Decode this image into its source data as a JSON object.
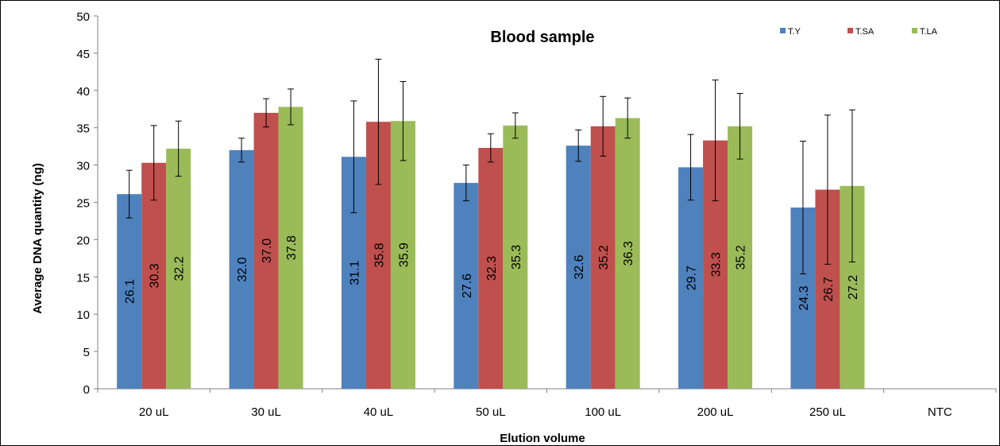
{
  "chart_data": {
    "type": "bar",
    "title": "Blood sample",
    "xlabel": "Elution volume",
    "ylabel": "Average DNA quantity (ng)",
    "ylim": [
      0,
      50
    ],
    "yticks": [
      0,
      5,
      10,
      15,
      20,
      25,
      30,
      35,
      40,
      45,
      50
    ],
    "categories": [
      "20 uL",
      "30 uL",
      "40 uL",
      "50 uL",
      "100 uL",
      "200 uL",
      "250 uL",
      "NTC"
    ],
    "series": [
      {
        "name": "T.Y",
        "color": "#4F81BD",
        "values": [
          26.1,
          32.0,
          31.1,
          27.6,
          32.6,
          29.7,
          24.3,
          null
        ],
        "labels": [
          "26.1",
          "32.0",
          "31.1",
          "27.6",
          "32.6",
          "29.7",
          "24.3",
          ""
        ],
        "errors": [
          3.2,
          1.6,
          7.5,
          2.4,
          2.1,
          4.4,
          8.9,
          null
        ]
      },
      {
        "name": "T.SA",
        "color": "#C0504D",
        "values": [
          30.3,
          37.0,
          35.8,
          32.3,
          35.2,
          33.3,
          26.7,
          null
        ],
        "labels": [
          "30.3",
          "37.0",
          "35.8",
          "32.3",
          "35.2",
          "33.3",
          "26.7",
          ""
        ],
        "errors": [
          5.0,
          1.9,
          8.4,
          1.9,
          4.0,
          8.1,
          10.0,
          null
        ]
      },
      {
        "name": "T.LA",
        "color": "#9BBB59",
        "values": [
          32.2,
          37.8,
          35.9,
          35.3,
          36.3,
          35.2,
          27.2,
          null
        ],
        "labels": [
          "32.2",
          "37.8",
          "35.9",
          "35.3",
          "36.3",
          "35.2",
          "27.2",
          ""
        ],
        "errors": [
          3.7,
          2.4,
          5.3,
          1.7,
          2.7,
          4.4,
          10.2,
          null
        ]
      }
    ],
    "legend_position": "top-right",
    "grid": false
  }
}
